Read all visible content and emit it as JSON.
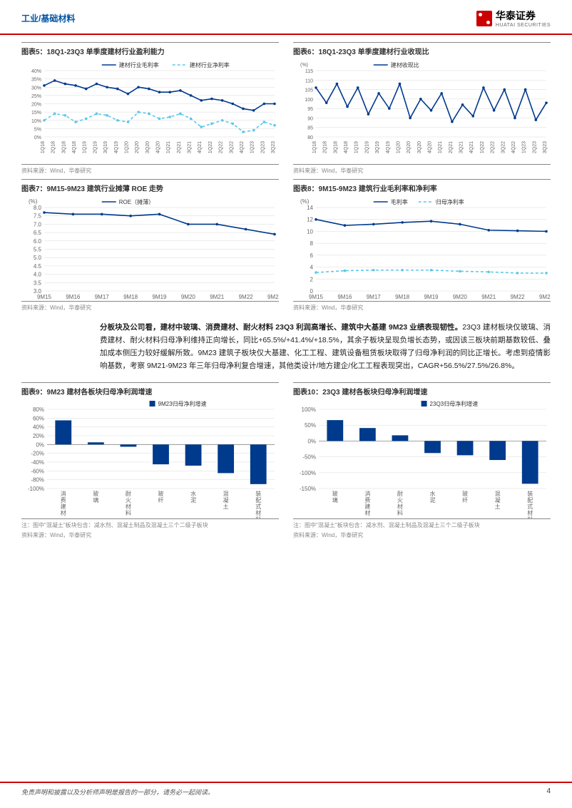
{
  "header": {
    "section": "工业/基础材料",
    "brand": "华泰证券",
    "brand_en": "HUATAI SECURITIES"
  },
  "footer": {
    "disclaimer": "免责声明和披露以及分析师声明是报告的一部分，请务必一起阅读。",
    "page": "4"
  },
  "chart5": {
    "title": "图表5：18Q1-23Q3 单季度建材行业盈利能力",
    "source": "资料来源：Wind，华泰研究",
    "type": "line",
    "x_labels": [
      "1Q18",
      "2Q18",
      "3Q18",
      "4Q18",
      "1Q19",
      "2Q19",
      "3Q19",
      "4Q19",
      "1Q20",
      "2Q20",
      "3Q20",
      "4Q20",
      "1Q21",
      "2Q21",
      "3Q21",
      "4Q21",
      "1Q22",
      "2Q22",
      "3Q22",
      "4Q22",
      "1Q23",
      "2Q23",
      "3Q23"
    ],
    "ylim": [
      0,
      40
    ],
    "ytick_step": 5,
    "y_suffix": "%",
    "series": [
      {
        "name": "建材行业毛利率",
        "color": "#003a8c",
        "style": "solid",
        "values": [
          31,
          34,
          32,
          31,
          29,
          32,
          30,
          29,
          26,
          30,
          29,
          27,
          27,
          28,
          25,
          22,
          23,
          22,
          20,
          17,
          16,
          20,
          20
        ]
      },
      {
        "name": "建材行业净利率",
        "color": "#5bc8e8",
        "style": "dash",
        "values": [
          10,
          14,
          13,
          9,
          11,
          14,
          13,
          10,
          9,
          15,
          14,
          11,
          12,
          14,
          11,
          6,
          8,
          10,
          8,
          3,
          4,
          9,
          7
        ]
      }
    ],
    "grid_color": "#d9d9d9",
    "label_fontsize": 7
  },
  "chart6": {
    "title": "图表6：18Q1-23Q3 单季度建材行业收现比",
    "source": "资料来源：Wind，华泰研究",
    "type": "line",
    "x_labels": [
      "1Q18",
      "2Q18",
      "3Q18",
      "4Q18",
      "1Q19",
      "2Q19",
      "3Q19",
      "4Q19",
      "1Q20",
      "2Q20",
      "3Q20",
      "4Q20",
      "1Q21",
      "2Q21",
      "3Q21",
      "4Q21",
      "1Q22",
      "2Q22",
      "3Q22",
      "4Q22",
      "1Q23",
      "2Q23",
      "3Q23"
    ],
    "ylim": [
      80,
      115
    ],
    "ytick_step": 5,
    "y_unit": "(%)",
    "series": [
      {
        "name": "建材收现比",
        "color": "#003a8c",
        "style": "solid",
        "values": [
          106,
          98,
          108,
          96,
          106,
          92,
          103,
          95,
          108,
          90,
          100,
          94,
          103,
          88,
          97,
          91,
          106,
          94,
          105,
          90,
          105,
          89,
          98
        ]
      }
    ],
    "grid_color": "#d9d9d9",
    "label_fontsize": 7
  },
  "chart7": {
    "title": "图表7：9M15-9M23 建筑行业摊薄 ROE 走势",
    "source": "资料来源：Wind，华泰研究",
    "type": "line",
    "x_labels": [
      "9M15",
      "9M16",
      "9M17",
      "9M18",
      "9M19",
      "9M20",
      "9M21",
      "9M22",
      "9M23"
    ],
    "ylim": [
      3.0,
      8.0
    ],
    "ytick_step": 0.5,
    "y_unit": "(%)",
    "series": [
      {
        "name": "ROE（摊薄）",
        "color": "#003a8c",
        "style": "solid",
        "values": [
          7.7,
          7.6,
          7.6,
          7.5,
          7.6,
          7.0,
          7.0,
          6.7,
          6.4
        ]
      }
    ],
    "grid_color": "#d9d9d9",
    "label_fontsize": 8
  },
  "chart8": {
    "title": "图表8：9M15-9M23 建筑行业毛利率和净利率",
    "source": "资料来源：Wind，华泰研究",
    "type": "line",
    "x_labels": [
      "9M15",
      "9M16",
      "9M17",
      "9M18",
      "9M19",
      "9M20",
      "9M21",
      "9M22",
      "9M23"
    ],
    "ylim": [
      0,
      14
    ],
    "ytick_step": 2,
    "y_unit": "(%)",
    "series": [
      {
        "name": "毛利率",
        "color": "#003a8c",
        "style": "solid",
        "values": [
          12.0,
          11.0,
          11.2,
          11.5,
          11.7,
          11.2,
          10.2,
          10.1,
          10.0
        ]
      },
      {
        "name": "归母净利率",
        "color": "#5bc8e8",
        "style": "dash",
        "values": [
          3.1,
          3.4,
          3.5,
          3.5,
          3.5,
          3.3,
          3.2,
          3.0,
          3.0
        ]
      }
    ],
    "grid_color": "#d9d9d9",
    "label_fontsize": 8
  },
  "paragraph": "分板块及公司看，建材中玻璃、消费建材、耐火材料 23Q3 利润高增长、建筑中大基建 9M23 业绩表现韧性。",
  "paragraph_body": "23Q3 建材板块仅玻璃、消费建材、耐火材料归母净利维持正向增长，同比+65.5%/+41.4%/+18.5%，其余子板块呈现负增长态势，或因该三板块前期基数较低、叠加成本侧压力较好缓解所致。9M23 建筑子板块仅大基建、化工工程、建筑设备租赁板块取得了归母净利润的同比正增长。考虑到疫情影响基数，考察 9M21-9M23 年三年归母净利复合增速，其他类设计/地方建企/化工工程表现突出，CAGR+56.5%/27.5%/26.8%。",
  "chart9": {
    "title": "图表9：9M23 建材各板块归母净利润增速",
    "source": "资料来源：Wind，华泰研究",
    "note": "注：图中\"混凝土\"板块包含：减水剂、混凝土制品及混凝土三个二级子板块",
    "type": "bar",
    "x_labels": [
      "消费建材",
      "玻璃",
      "耐火材料",
      "玻纤",
      "水泥",
      "混凝土",
      "装配式材料"
    ],
    "ylim": [
      -100,
      80
    ],
    "ytick_step": 20,
    "y_suffix": "%",
    "series": [
      {
        "name": "9M23归母净利增速",
        "color": "#003a8c",
        "values": [
          55,
          5,
          -5,
          -45,
          -48,
          -65,
          -90
        ]
      }
    ],
    "grid_color": "#d9d9d9",
    "label_fontsize": 8
  },
  "chart10": {
    "title": "图表10：23Q3 建材各板块归母净利润增速",
    "source": "资料来源：Wind，华泰研究",
    "note": "注：图中\"混凝土\"板块包含：减水剂、混凝土制品及混凝土三个二级子板块",
    "type": "bar",
    "x_labels": [
      "玻璃",
      "消费建材",
      "耐火材料",
      "水泥",
      "玻纤",
      "混凝土",
      "装配式材料"
    ],
    "ylim": [
      -150,
      100
    ],
    "ytick_step": 50,
    "y_suffix": "%",
    "series": [
      {
        "name": "23Q3归母净利增速",
        "color": "#003a8c",
        "values": [
          66,
          41,
          18,
          -38,
          -45,
          -60,
          -135
        ]
      }
    ],
    "grid_color": "#d9d9d9",
    "label_fontsize": 8
  }
}
